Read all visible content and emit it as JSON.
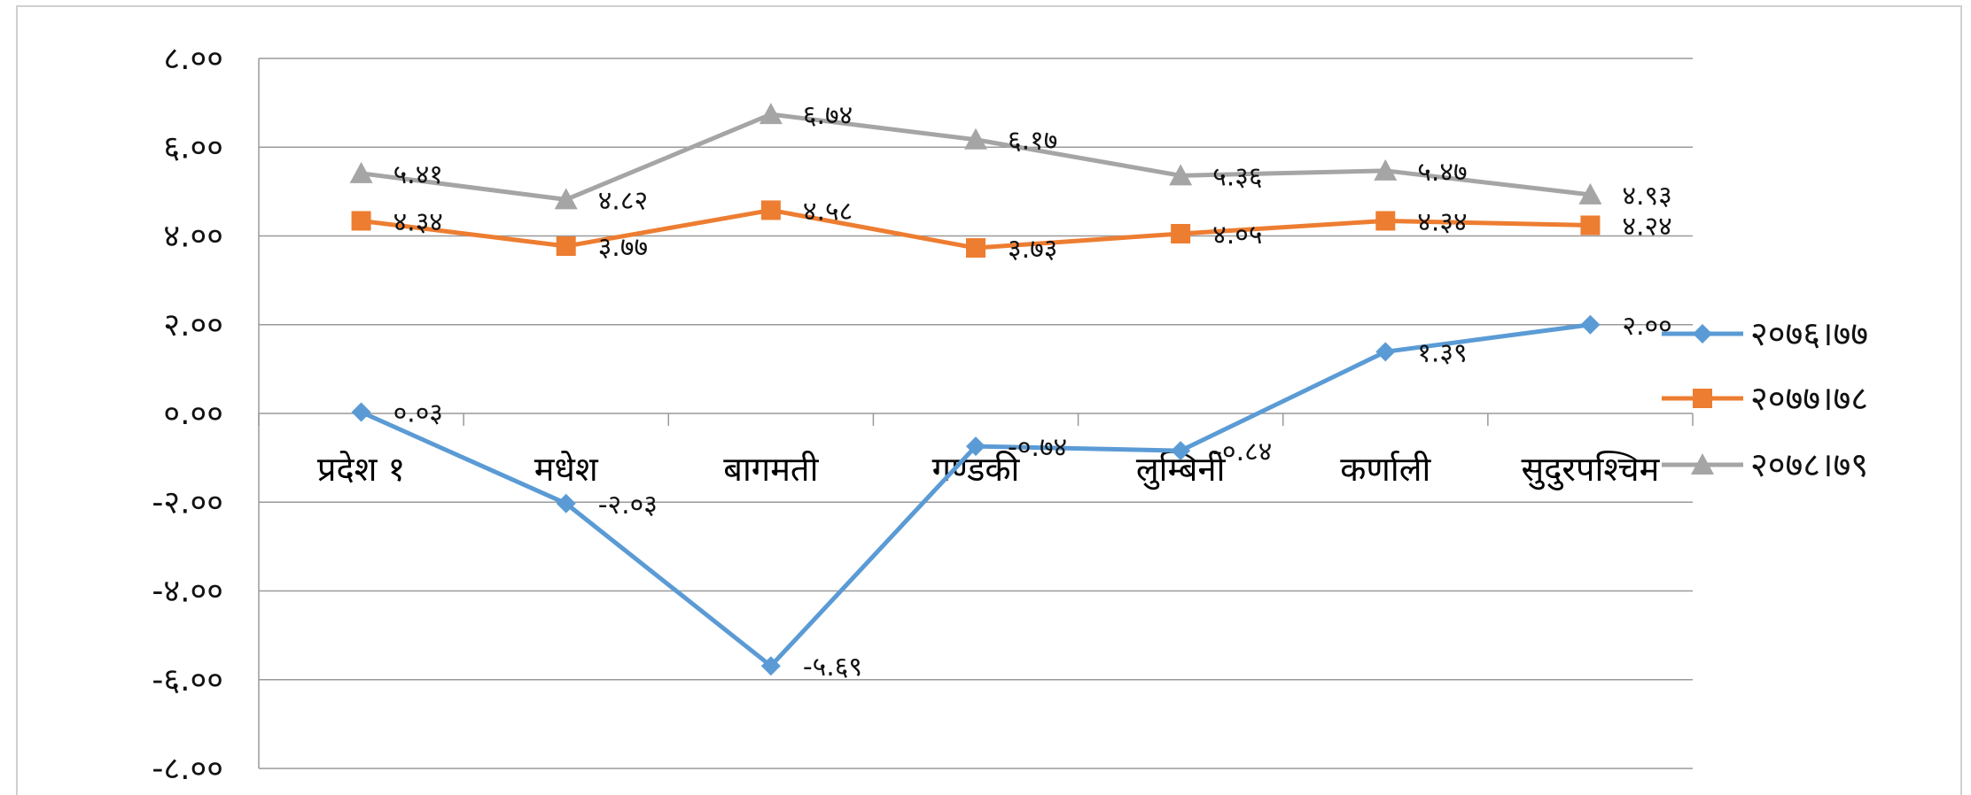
{
  "chart_data": {
    "type": "line",
    "categories": [
      "प्रदेश १",
      "मधेश",
      "बागमती",
      "गण्डकी",
      "लुम्बिनी",
      "कर्णाली",
      "सुदुरपश्चिम"
    ],
    "ylim": [
      -8,
      8
    ],
    "yticks": [
      8,
      6,
      4,
      2,
      0,
      -2,
      -4,
      -6,
      -8
    ],
    "ytick_labels": [
      "८.००",
      "६.००",
      "४.००",
      "२.००",
      "०.००",
      "-२.००",
      "-४.००",
      "-६.००",
      "-८.००"
    ],
    "grid": true,
    "legend_position": "right",
    "series": [
      {
        "name": "२०७६।७७",
        "color": "#5B9BD5",
        "marker": "diamond",
        "values": [
          0.03,
          -2.03,
          -5.69,
          -0.74,
          -0.84,
          1.39,
          2.0
        ],
        "labels": [
          "०.०३",
          "-२.०३",
          "-५.६९",
          "-०.७४",
          "-०.८४",
          "१.३९",
          "२.००"
        ]
      },
      {
        "name": "२०७७।७८",
        "color": "#ED7D31",
        "marker": "square",
        "values": [
          4.34,
          3.77,
          4.58,
          3.73,
          4.05,
          4.34,
          4.24
        ],
        "labels": [
          "४.३४",
          "३.७७",
          "४.५८",
          "३.७३",
          "४.०५",
          "४.३४",
          "४.२४"
        ]
      },
      {
        "name": "२०७८।७९",
        "color": "#A5A5A5",
        "marker": "triangle",
        "values": [
          5.41,
          4.82,
          6.74,
          6.17,
          5.36,
          5.47,
          4.93
        ],
        "labels": [
          "५.४१",
          "४.८२",
          "६.७४",
          "६.१७",
          "५.३६",
          "५.४७",
          "४.९३"
        ]
      }
    ]
  }
}
